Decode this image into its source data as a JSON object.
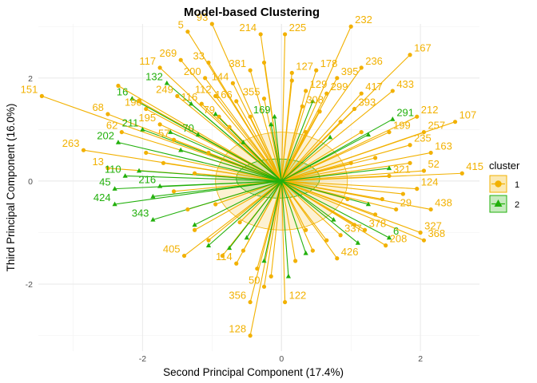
{
  "chart_data": {
    "type": "scatter",
    "title": "Model-based Clustering",
    "xlabel": "Second Principal Component (17.4%)",
    "ylabel": "Third Principal Component (16.0%)",
    "xlim": [
      -3.5,
      2.85
    ],
    "ylim": [
      -3.3,
      3.05
    ],
    "xticks": [
      -2,
      0,
      2
    ],
    "yticks": [
      -2,
      0,
      2
    ],
    "grid": true,
    "legend": {
      "title": "cluster",
      "position": "right",
      "entries": [
        {
          "label": "1",
          "color": "#F2B100",
          "shape": "circle"
        },
        {
          "label": "2",
          "color": "#22B00C",
          "shape": "triangle"
        }
      ]
    },
    "centers": {
      "1": [
        0.0,
        0.0
      ],
      "2": [
        0.0,
        0.0
      ]
    },
    "ellipses": [
      {
        "cluster": "1",
        "cx": 0,
        "cy": 0,
        "rx": 0.95,
        "ry": 0.95
      },
      {
        "cluster": "2",
        "cx": -0.05,
        "cy": 0.05,
        "rx": 0.6,
        "ry": 0.38
      }
    ],
    "labeled_points": [
      {
        "label": "151",
        "x": -3.45,
        "y": 1.65,
        "cluster": "1"
      },
      {
        "label": "68",
        "x": -2.5,
        "y": 1.3,
        "cluster": "1"
      },
      {
        "label": "62",
        "x": -2.3,
        "y": 0.95,
        "cluster": "1"
      },
      {
        "label": "263",
        "x": -2.85,
        "y": 0.6,
        "cluster": "1"
      },
      {
        "label": "13",
        "x": -2.5,
        "y": 0.25,
        "cluster": "1"
      },
      {
        "label": "5",
        "x": -1.35,
        "y": 2.9,
        "cluster": "1"
      },
      {
        "label": "93",
        "x": -1.0,
        "y": 3.05,
        "cluster": "1"
      },
      {
        "label": "269",
        "x": -1.45,
        "y": 2.35,
        "cluster": "1"
      },
      {
        "label": "117",
        "x": -1.75,
        "y": 2.2,
        "cluster": "1"
      },
      {
        "label": "33",
        "x": -1.05,
        "y": 2.3,
        "cluster": "1"
      },
      {
        "label": "200",
        "x": -1.1,
        "y": 2.0,
        "cluster": "1"
      },
      {
        "label": "249",
        "x": -1.5,
        "y": 1.65,
        "cluster": "1"
      },
      {
        "label": "190",
        "x": -1.95,
        "y": 1.4,
        "cluster": "1"
      },
      {
        "label": "195",
        "x": -1.75,
        "y": 1.1,
        "cluster": "1"
      },
      {
        "label": "57",
        "x": -1.55,
        "y": 0.8,
        "cluster": "1"
      },
      {
        "label": "116",
        "x": -1.15,
        "y": 1.5,
        "cluster": "1"
      },
      {
        "label": "112",
        "x": -0.95,
        "y": 1.65,
        "cluster": "1"
      },
      {
        "label": "79",
        "x": -0.9,
        "y": 1.25,
        "cluster": "1"
      },
      {
        "label": "214",
        "x": -0.3,
        "y": 2.85,
        "cluster": "1"
      },
      {
        "label": "225",
        "x": 0.05,
        "y": 2.85,
        "cluster": "1"
      },
      {
        "label": "381",
        "x": -0.45,
        "y": 2.15,
        "cluster": "1"
      },
      {
        "label": "144",
        "x": -0.7,
        "y": 1.9,
        "cluster": "1"
      },
      {
        "label": "166",
        "x": -0.65,
        "y": 1.55,
        "cluster": "1"
      },
      {
        "label": "355",
        "x": -0.25,
        "y": 1.6,
        "cluster": "1"
      },
      {
        "label": "127",
        "x": 0.15,
        "y": 2.1,
        "cluster": "1"
      },
      {
        "label": "178",
        "x": 0.5,
        "y": 2.15,
        "cluster": "1"
      },
      {
        "label": "232",
        "x": 1.0,
        "y": 3.0,
        "cluster": "1"
      },
      {
        "label": "167",
        "x": 1.85,
        "y": 2.45,
        "cluster": "1"
      },
      {
        "label": "236",
        "x": 1.15,
        "y": 2.2,
        "cluster": "1"
      },
      {
        "label": "395",
        "x": 0.8,
        "y": 2.0,
        "cluster": "1"
      },
      {
        "label": "299",
        "x": 0.65,
        "y": 1.7,
        "cluster": "1"
      },
      {
        "label": "417",
        "x": 1.15,
        "y": 1.7,
        "cluster": "1"
      },
      {
        "label": "433",
        "x": 1.6,
        "y": 1.75,
        "cluster": "1"
      },
      {
        "label": "129",
        "x": 0.35,
        "y": 1.75,
        "cluster": "1"
      },
      {
        "label": "308",
        "x": 0.3,
        "y": 1.45,
        "cluster": "1"
      },
      {
        "label": "393",
        "x": 1.05,
        "y": 1.4,
        "cluster": "1"
      },
      {
        "label": "212",
        "x": 1.95,
        "y": 1.25,
        "cluster": "1"
      },
      {
        "label": "107",
        "x": 2.5,
        "y": 1.15,
        "cluster": "1"
      },
      {
        "label": "257",
        "x": 2.05,
        "y": 0.95,
        "cluster": "1"
      },
      {
        "label": "199",
        "x": 1.55,
        "y": 0.95,
        "cluster": "1"
      },
      {
        "label": "235",
        "x": 1.85,
        "y": 0.7,
        "cluster": "1"
      },
      {
        "label": "163",
        "x": 2.15,
        "y": 0.55,
        "cluster": "1"
      },
      {
        "label": "52",
        "x": 2.05,
        "y": 0.2,
        "cluster": "1"
      },
      {
        "label": "321",
        "x": 1.55,
        "y": 0.1,
        "cluster": "1"
      },
      {
        "label": "415",
        "x": 2.6,
        "y": 0.15,
        "cluster": "1"
      },
      {
        "label": "124",
        "x": 1.95,
        "y": -0.15,
        "cluster": "1"
      },
      {
        "label": "438",
        "x": 2.15,
        "y": -0.55,
        "cluster": "1"
      },
      {
        "label": "29",
        "x": 1.65,
        "y": -0.55,
        "cluster": "1"
      },
      {
        "label": "378",
        "x": 1.2,
        "y": -0.95,
        "cluster": "1"
      },
      {
        "label": "327",
        "x": 2.0,
        "y": -1.0,
        "cluster": "1"
      },
      {
        "label": "368",
        "x": 2.05,
        "y": -1.15,
        "cluster": "1"
      },
      {
        "label": "208",
        "x": 1.5,
        "y": -1.25,
        "cluster": "1"
      },
      {
        "label": "337",
        "x": 0.85,
        "y": -1.05,
        "cluster": "1"
      },
      {
        "label": "426",
        "x": 0.8,
        "y": -1.5,
        "cluster": "1"
      },
      {
        "label": "405",
        "x": -1.4,
        "y": -1.45,
        "cluster": "1"
      },
      {
        "label": "114",
        "x": -0.65,
        "y": -1.6,
        "cluster": "1"
      },
      {
        "label": "50",
        "x": -0.25,
        "y": -2.05,
        "cluster": "1"
      },
      {
        "label": "356",
        "x": -0.45,
        "y": -2.35,
        "cluster": "1"
      },
      {
        "label": "122",
        "x": 0.05,
        "y": -2.35,
        "cluster": "1"
      },
      {
        "label": "128",
        "x": -0.45,
        "y": -3.0,
        "cluster": "1"
      },
      {
        "label": "16",
        "x": -2.15,
        "y": 1.6,
        "cluster": "2"
      },
      {
        "label": "132",
        "x": -1.65,
        "y": 1.9,
        "cluster": "2"
      },
      {
        "label": "211",
        "x": -2.0,
        "y": 1.0,
        "cluster": "2"
      },
      {
        "label": "70",
        "x": -1.2,
        "y": 0.9,
        "cluster": "2"
      },
      {
        "label": "202",
        "x": -2.35,
        "y": 0.75,
        "cluster": "2"
      },
      {
        "label": "110",
        "x": -2.25,
        "y": 0.1,
        "cluster": "2"
      },
      {
        "label": "45",
        "x": -2.4,
        "y": -0.15,
        "cluster": "2"
      },
      {
        "label": "216",
        "x": -1.75,
        "y": -0.1,
        "cluster": "2"
      },
      {
        "label": "424",
        "x": -2.4,
        "y": -0.45,
        "cluster": "2"
      },
      {
        "label": "343",
        "x": -1.85,
        "y": -0.75,
        "cluster": "2"
      },
      {
        "label": "169",
        "x": -0.1,
        "y": 1.25,
        "cluster": "2"
      },
      {
        "label": "291",
        "x": 1.6,
        "y": 1.2,
        "cluster": "2"
      },
      {
        "label": "6",
        "x": 1.55,
        "y": -1.1,
        "cluster": "2"
      }
    ],
    "unlabeled_points": [
      {
        "x": -2.35,
        "y": 1.85,
        "cluster": "1"
      },
      {
        "x": -2.05,
        "y": 1.55,
        "cluster": "1"
      },
      {
        "x": -1.95,
        "y": 0.55,
        "cluster": "1"
      },
      {
        "x": -1.7,
        "y": 0.35,
        "cluster": "1"
      },
      {
        "x": -1.55,
        "y": -0.2,
        "cluster": "1"
      },
      {
        "x": -1.35,
        "y": -0.55,
        "cluster": "1"
      },
      {
        "x": -1.25,
        "y": -0.95,
        "cluster": "1"
      },
      {
        "x": -1.05,
        "y": -1.15,
        "cluster": "1"
      },
      {
        "x": -0.85,
        "y": -1.45,
        "cluster": "1"
      },
      {
        "x": -0.55,
        "y": -1.35,
        "cluster": "1"
      },
      {
        "x": -0.35,
        "y": -1.7,
        "cluster": "1"
      },
      {
        "x": -0.15,
        "y": -1.85,
        "cluster": "1"
      },
      {
        "x": 0.2,
        "y": -1.55,
        "cluster": "1"
      },
      {
        "x": 0.45,
        "y": -1.35,
        "cluster": "1"
      },
      {
        "x": 0.65,
        "y": -1.15,
        "cluster": "1"
      },
      {
        "x": 1.05,
        "y": -0.85,
        "cluster": "1"
      },
      {
        "x": 1.35,
        "y": -0.65,
        "cluster": "1"
      },
      {
        "x": 1.45,
        "y": -0.35,
        "cluster": "1"
      },
      {
        "x": 1.75,
        "y": -0.25,
        "cluster": "1"
      },
      {
        "x": 1.85,
        "y": 0.35,
        "cluster": "1"
      },
      {
        "x": 1.35,
        "y": 0.45,
        "cluster": "1"
      },
      {
        "x": 1.15,
        "y": 0.95,
        "cluster": "1"
      },
      {
        "x": 0.85,
        "y": 1.15,
        "cluster": "1"
      },
      {
        "x": 0.55,
        "y": 1.35,
        "cluster": "1"
      },
      {
        "x": 0.15,
        "y": 1.95,
        "cluster": "1"
      },
      {
        "x": -0.25,
        "y": 2.3,
        "cluster": "1"
      },
      {
        "x": -0.45,
        "y": 1.25,
        "cluster": "1"
      },
      {
        "x": -0.75,
        "y": 1.05,
        "cluster": "1"
      },
      {
        "x": -1.05,
        "y": 0.55,
        "cluster": "1"
      },
      {
        "x": -1.25,
        "y": 0.15,
        "cluster": "1"
      },
      {
        "x": -0.95,
        "y": -0.45,
        "cluster": "1"
      },
      {
        "x": -0.6,
        "y": -0.8,
        "cluster": "1"
      },
      {
        "x": 0.35,
        "y": -0.95,
        "cluster": "1"
      },
      {
        "x": 0.95,
        "y": -0.35,
        "cluster": "1"
      },
      {
        "x": 1.0,
        "y": 0.35,
        "cluster": "1"
      },
      {
        "x": 0.35,
        "y": 0.95,
        "cluster": "1"
      },
      {
        "x": -2.05,
        "y": 0.2,
        "cluster": "2"
      },
      {
        "x": -1.85,
        "y": -0.3,
        "cluster": "2"
      },
      {
        "x": -1.45,
        "y": 0.6,
        "cluster": "2"
      },
      {
        "x": -1.25,
        "y": -0.85,
        "cluster": "2"
      },
      {
        "x": -1.05,
        "y": -1.25,
        "cluster": "2"
      },
      {
        "x": -0.75,
        "y": -1.3,
        "cluster": "2"
      },
      {
        "x": -0.5,
        "y": -1.1,
        "cluster": "2"
      },
      {
        "x": -0.25,
        "y": -1.55,
        "cluster": "2"
      },
      {
        "x": 0.1,
        "y": -1.85,
        "cluster": "2"
      },
      {
        "x": 0.35,
        "y": -1.4,
        "cluster": "2"
      },
      {
        "x": 0.75,
        "y": -0.75,
        "cluster": "2"
      },
      {
        "x": 1.1,
        "y": -1.2,
        "cluster": "2"
      },
      {
        "x": 1.25,
        "y": -0.45,
        "cluster": "2"
      },
      {
        "x": 1.55,
        "y": 0.25,
        "cluster": "2"
      },
      {
        "x": 1.25,
        "y": 0.9,
        "cluster": "2"
      },
      {
        "x": 0.7,
        "y": 0.85,
        "cluster": "2"
      },
      {
        "x": 0.45,
        "y": 1.55,
        "cluster": "2"
      },
      {
        "x": -0.15,
        "y": 1.1,
        "cluster": "2"
      },
      {
        "x": -0.55,
        "y": 0.75,
        "cluster": "2"
      },
      {
        "x": -0.95,
        "y": 1.3,
        "cluster": "2"
      },
      {
        "x": -1.3,
        "y": 1.5,
        "cluster": "2"
      },
      {
        "x": -1.6,
        "y": 0.95,
        "cluster": "2"
      }
    ]
  }
}
